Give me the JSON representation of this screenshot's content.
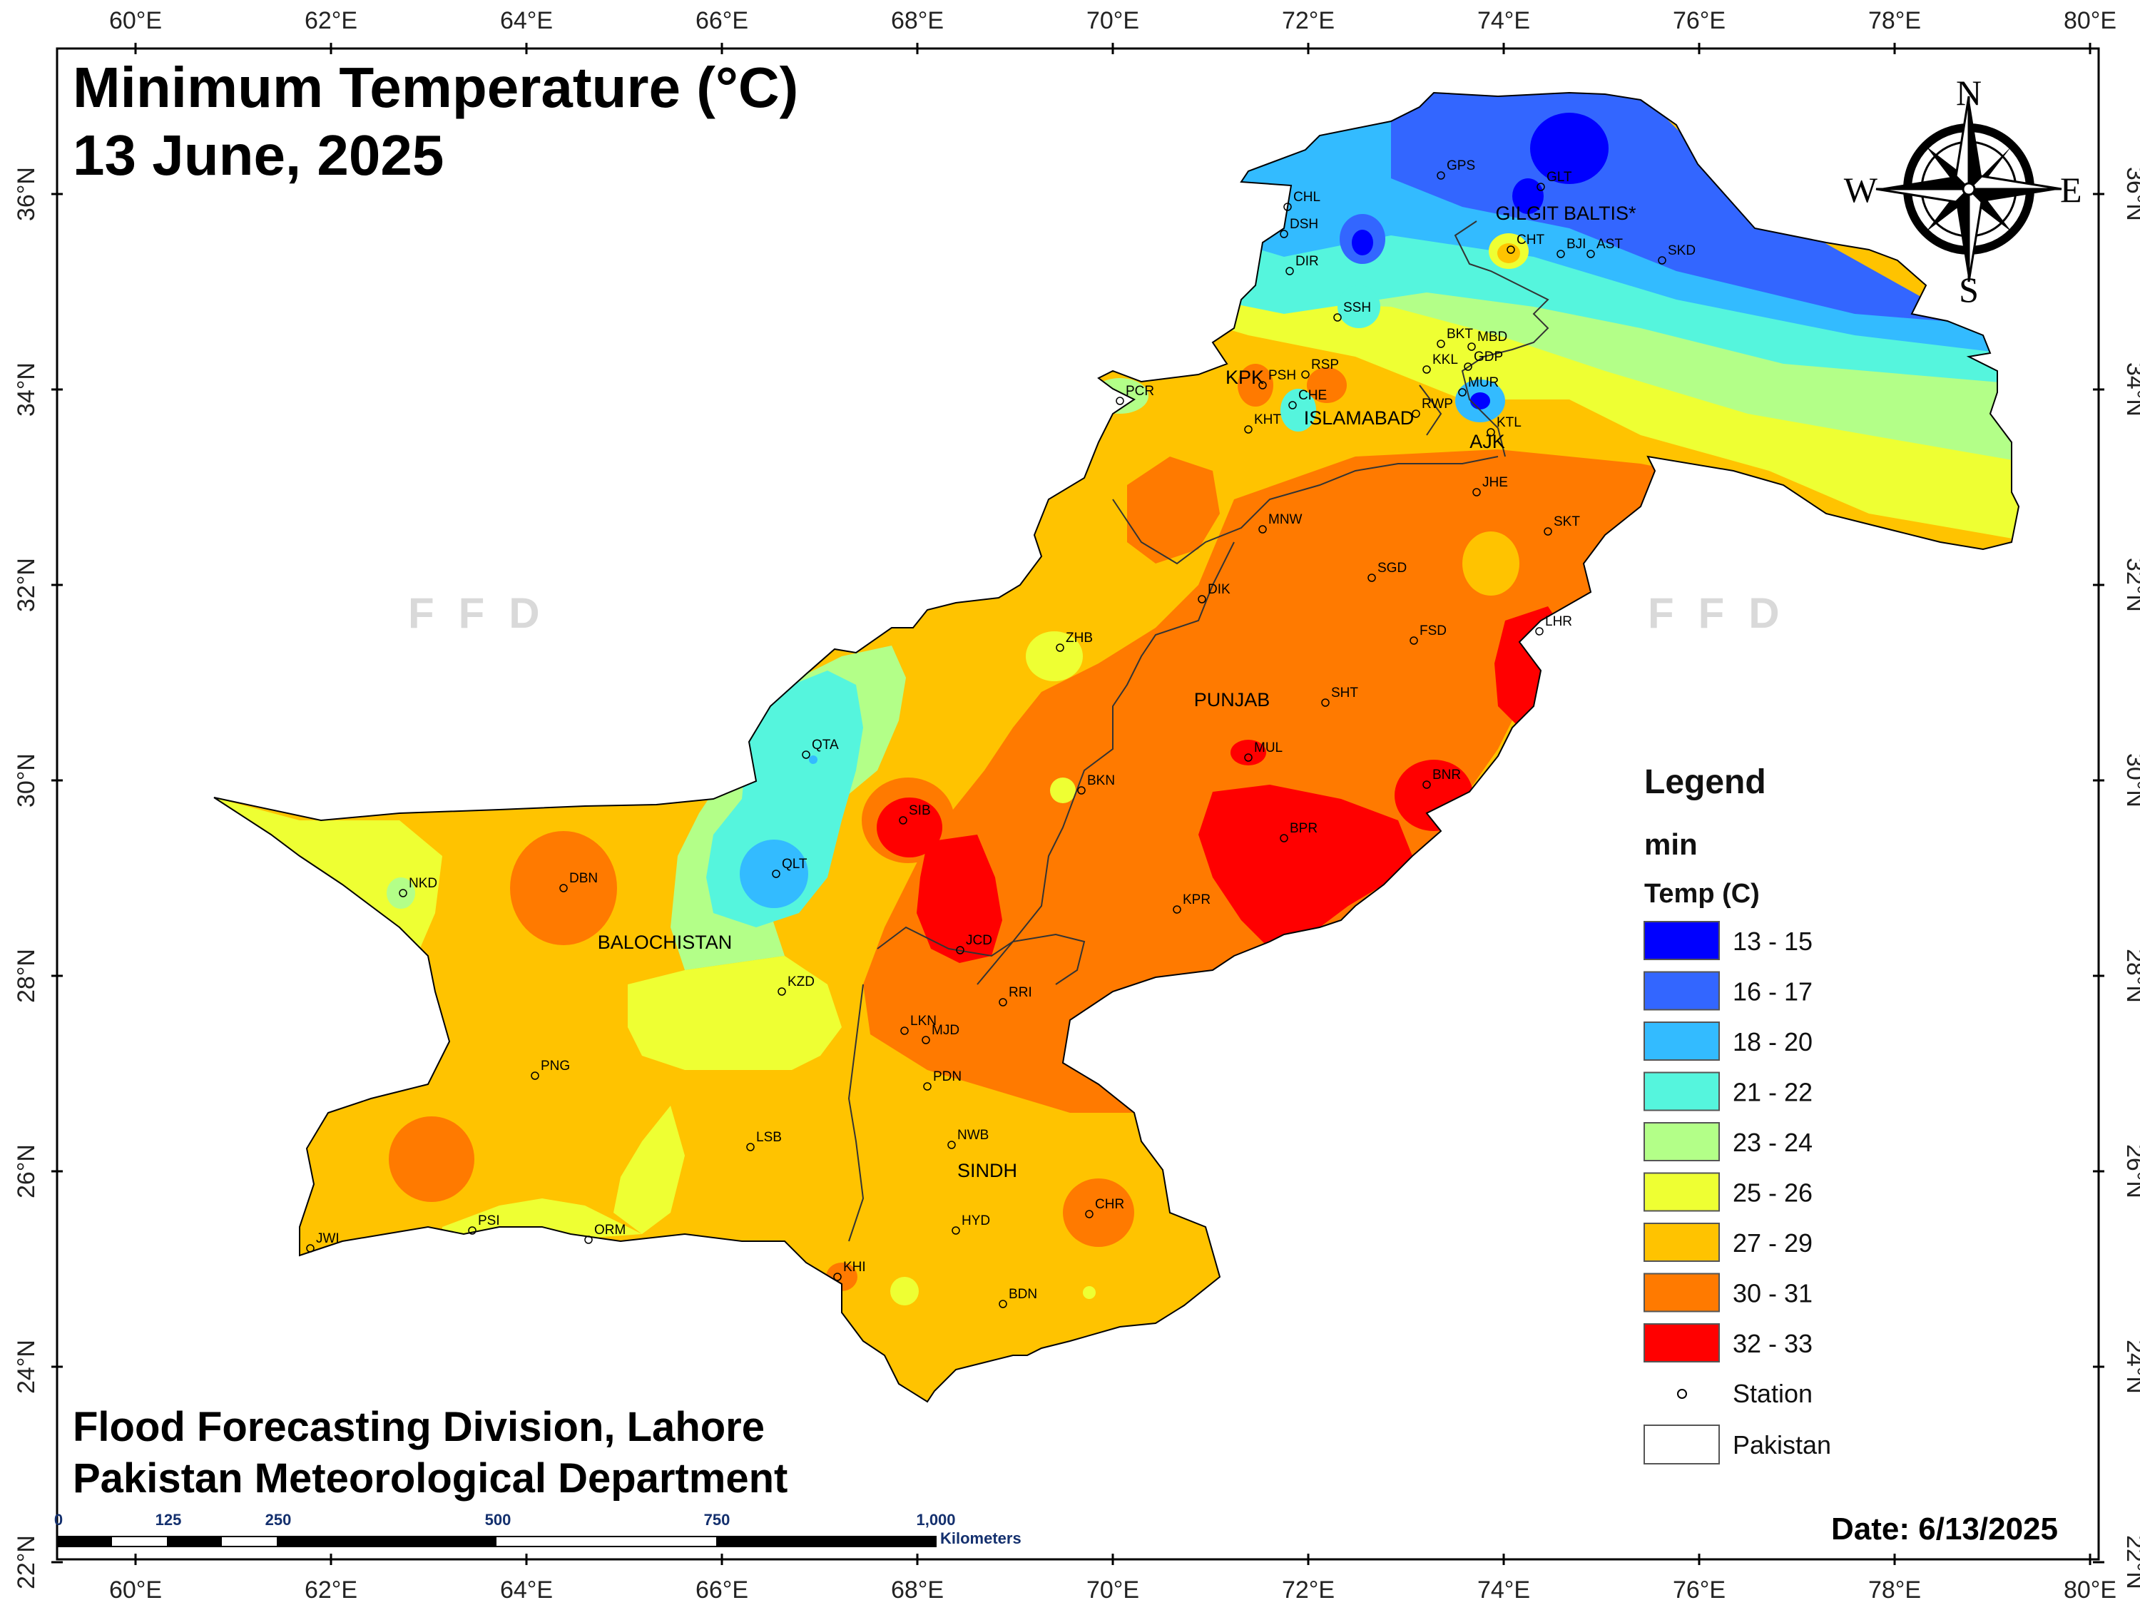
{
  "map": {
    "title_line1": "Minimum Temperature (°C)",
    "title_line2": "13 June, 2025",
    "footer_line1": "Flood Forecasting Division, Lahore",
    "footer_line2": "Pakistan Meteorological Department",
    "date": "Date: 6/13/2025",
    "watermark": "FFD"
  },
  "axes": {
    "lon_labels": [
      "60°E",
      "62°E",
      "64°E",
      "66°E",
      "68°E",
      "70°E",
      "72°E",
      "74°E",
      "76°E",
      "78°E",
      "80°E"
    ],
    "lat_labels": [
      "36°N",
      "34°N",
      "32°N",
      "30°N",
      "28°N",
      "26°N",
      "24°N",
      "22°N"
    ]
  },
  "compass": {
    "n": "N",
    "e": "E",
    "s": "S",
    "w": "W"
  },
  "legend": {
    "heading": "Legend",
    "subtitle": "min",
    "field": "Temp (C)",
    "classes": [
      {
        "label": "13 - 15",
        "color": "#0000ff"
      },
      {
        "label": "16 - 17",
        "color": "#3366ff"
      },
      {
        "label": "18 - 20",
        "color": "#33bbff"
      },
      {
        "label": "21 - 22",
        "color": "#55f5dd"
      },
      {
        "label": "23 - 24",
        "color": "#b3ff88"
      },
      {
        "label": "25 - 26",
        "color": "#eeff33"
      },
      {
        "label": "27 - 29",
        "color": "#ffc300"
      },
      {
        "label": "30 - 31",
        "color": "#ff7a00"
      },
      {
        "label": "32 - 33",
        "color": "#ff0000"
      }
    ],
    "station_label": "Station",
    "pakistan_label": "Pakistan"
  },
  "scalebar": {
    "ticks": [
      "0",
      "125",
      "250",
      "500",
      "750",
      "1,000"
    ],
    "unit": "Kilometers"
  },
  "regions": {
    "balochistan": "BALOCHISTAN",
    "punjab": "PUNJAB",
    "sindh": "SINDH",
    "kpk": "KPK",
    "islamabad": "ISLAMABAD",
    "ajk": "AJK",
    "gilgit": "GILGIT BALTIS*"
  },
  "stations": [
    "GPS",
    "GLT",
    "CHL",
    "DSH",
    "DIR",
    "CHT",
    "BJI",
    "AST",
    "SKD",
    "SSH",
    "BKT",
    "MBD",
    "KKL",
    "GDP",
    "MUR",
    "PSH",
    "RSP",
    "CHE",
    "KHT",
    "RWP",
    "KTL",
    "PCR",
    "JHE",
    "MNW",
    "SKT",
    "SGD",
    "DIK",
    "FSD",
    "LHR",
    "ZHB",
    "SHT",
    "QTA",
    "MUL",
    "BKN",
    "BNR",
    "SIB",
    "BPR",
    "QLT",
    "NKD",
    "DBN",
    "KPR",
    "JCD",
    "KZD",
    "RRI",
    "LKN",
    "MJD",
    "PNG",
    "PDN",
    "NWB",
    "LSB",
    "HYD",
    "CHR",
    "PSI",
    "ORM",
    "JWI",
    "KHI",
    "BDN"
  ]
}
